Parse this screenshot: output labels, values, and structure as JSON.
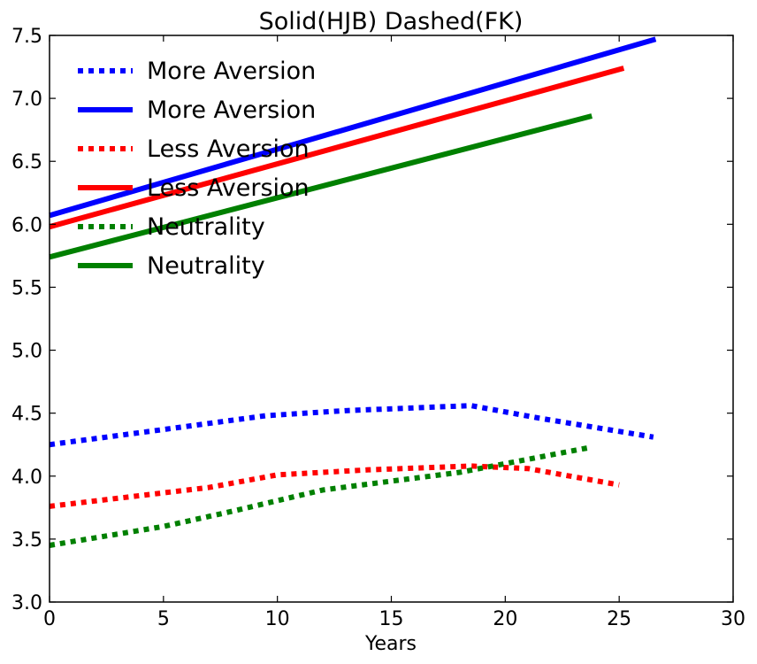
{
  "chart_data": {
    "type": "line",
    "title": "Solid(HJB) Dashed(FK)",
    "xlabel": "Years",
    "ylabel": "",
    "xlim": [
      0,
      30
    ],
    "ylim": [
      3.0,
      7.5
    ],
    "x_ticks": [
      "0",
      "5",
      "10",
      "15",
      "20",
      "25",
      "30"
    ],
    "y_ticks": [
      "3.0",
      "3.5",
      "4.0",
      "4.5",
      "5.0",
      "5.5",
      "6.0",
      "6.5",
      "7.0",
      "7.5"
    ],
    "grid": false,
    "legend_position": "top-left",
    "series": [
      {
        "name": "More Aversion",
        "style": "dotted",
        "color": "#0000ff",
        "x": [
          0,
          5,
          9.5,
          13,
          18.5,
          21.5,
          26.5
        ],
        "y": [
          4.25,
          4.37,
          4.48,
          4.52,
          4.56,
          4.46,
          4.31
        ]
      },
      {
        "name": "More Aversion",
        "style": "solid",
        "color": "#0000ff",
        "x": [
          0,
          26.6
        ],
        "y": [
          6.07,
          7.47
        ]
      },
      {
        "name": "Less Aversion",
        "style": "dotted",
        "color": "#ff0000",
        "x": [
          0,
          7,
          10,
          14,
          18.5,
          21,
          25
        ],
        "y": [
          3.76,
          3.91,
          4.01,
          4.05,
          4.08,
          4.06,
          3.93
        ]
      },
      {
        "name": "Less Aversion",
        "style": "solid",
        "color": "#ff0000",
        "x": [
          0,
          25.2
        ],
        "y": [
          5.98,
          7.24
        ]
      },
      {
        "name": "Neutrality",
        "style": "dotted",
        "color": "#008000",
        "x": [
          0,
          5,
          8,
          12,
          18,
          23.8
        ],
        "y": [
          3.45,
          3.6,
          3.72,
          3.89,
          4.03,
          4.23
        ]
      },
      {
        "name": "Neutrality",
        "style": "solid",
        "color": "#008000",
        "x": [
          0,
          23.8
        ],
        "y": [
          5.74,
          6.86
        ]
      }
    ]
  }
}
